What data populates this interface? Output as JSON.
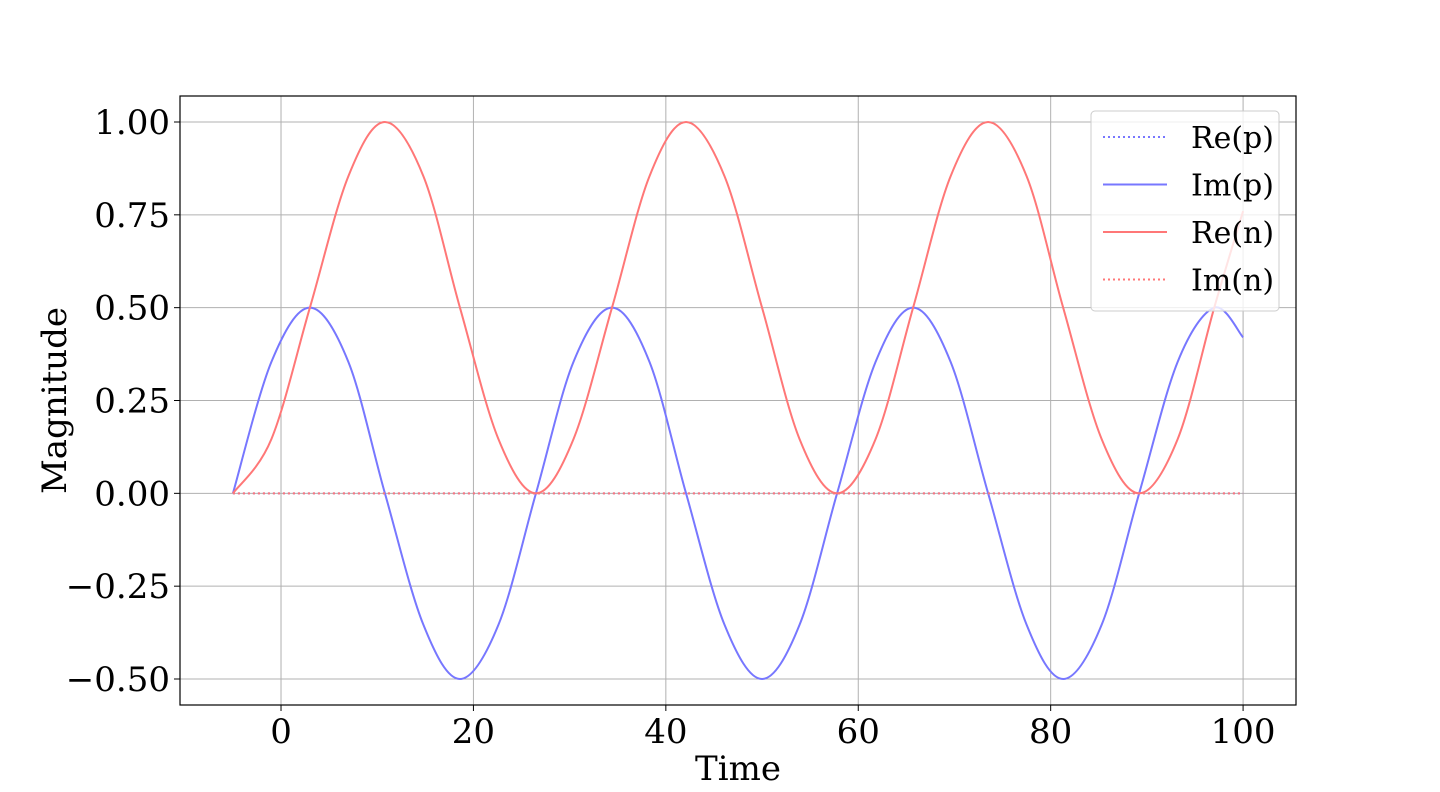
{
  "chart_data": {
    "type": "line",
    "xlabel": "Time",
    "ylabel": "Magnitude",
    "xlim": [
      -10.5,
      105.5
    ],
    "ylim": [
      -0.57,
      1.07
    ],
    "xticks": [
      0,
      20,
      40,
      60,
      80,
      100
    ],
    "yticks": [
      -0.5,
      -0.25,
      0.0,
      0.25,
      0.5,
      0.75,
      1.0
    ],
    "xtick_labels": [
      "0",
      "20",
      "40",
      "60",
      "80",
      "100"
    ],
    "ytick_labels": [
      "−0.50",
      "−0.25",
      "0.00",
      "0.25",
      "0.50",
      "0.75",
      "1.00"
    ],
    "grid": true,
    "legend_position": "top-right",
    "colors": {
      "p": "#7777ff",
      "n": "#ff7777",
      "grid": "#b0b0b0"
    },
    "series": [
      {
        "name": "Re(p)",
        "style": "dotted",
        "color": "#7777ff",
        "x": [
          -5,
          100
        ],
        "y": [
          0.0,
          0.0
        ]
      },
      {
        "name": "Im(p)",
        "style": "solid",
        "color": "#7777ff",
        "x": [
          -5,
          -1,
          3,
          7,
          10.8,
          14.8,
          18.6,
          22.6,
          26.5,
          30.4,
          34.4,
          38.3,
          42.1,
          46.1,
          50,
          53.9,
          57.8,
          61.8,
          65.7,
          69.6,
          73.5,
          77.5,
          81.3,
          85.3,
          89.2,
          93.2,
          97,
          100
        ],
        "y": [
          0.0,
          0.354,
          0.5,
          0.354,
          0.0,
          -0.354,
          -0.5,
          -0.354,
          0.0,
          0.354,
          0.5,
          0.354,
          0.0,
          -0.354,
          -0.5,
          -0.354,
          0.0,
          0.354,
          0.5,
          0.354,
          0.0,
          -0.354,
          -0.5,
          -0.354,
          0.0,
          0.354,
          0.5,
          0.42
        ]
      },
      {
        "name": "Re(n)",
        "style": "solid",
        "color": "#ff7777",
        "x": [
          -5,
          -1,
          3,
          7,
          10.8,
          14.8,
          18.6,
          22.6,
          26.5,
          30.4,
          34.4,
          38.3,
          42.1,
          46.1,
          50,
          53.9,
          57.8,
          61.8,
          65.7,
          69.6,
          73.5,
          77.5,
          81.3,
          85.3,
          89.2,
          93.2,
          97,
          100
        ],
        "y": [
          0.0,
          0.146,
          0.5,
          0.854,
          1.0,
          0.854,
          0.5,
          0.146,
          0.0,
          0.146,
          0.5,
          0.854,
          1.0,
          0.854,
          0.5,
          0.146,
          0.0,
          0.146,
          0.5,
          0.854,
          1.0,
          0.854,
          0.5,
          0.146,
          0.0,
          0.146,
          0.5,
          0.76
        ]
      },
      {
        "name": "Im(n)",
        "style": "dotted",
        "color": "#ff7777",
        "x": [
          -5,
          100
        ],
        "y": [
          0.0,
          0.0
        ]
      }
    ]
  }
}
